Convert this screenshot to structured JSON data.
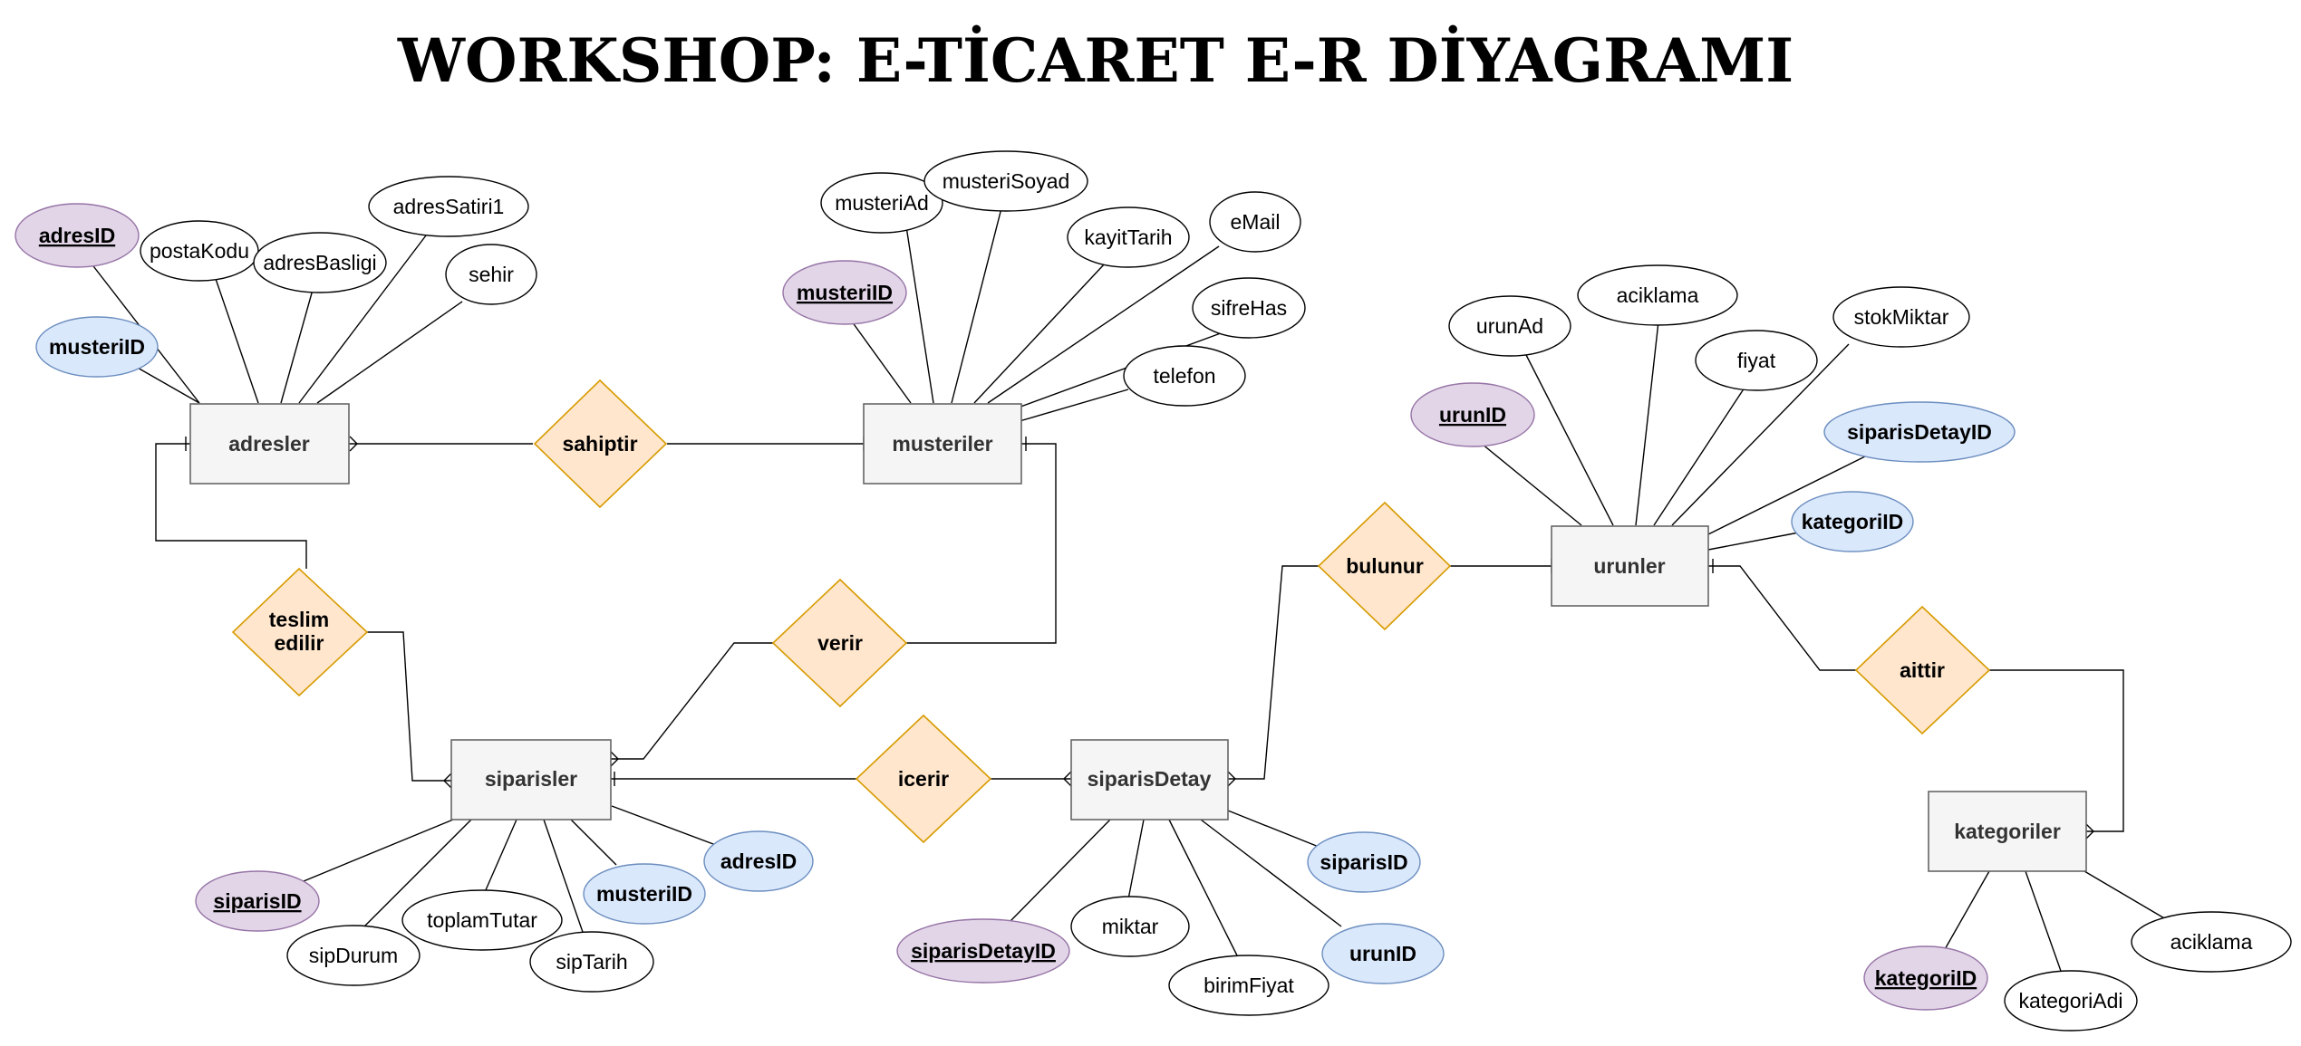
{
  "title": "WORKSHOP: E-TİCARET E-R DİYAGRAMI",
  "entities": {
    "adresler": "adresler",
    "musteriler": "musteriler",
    "siparisler": "siparisler",
    "siparisDetay": "siparisDetay",
    "urunler": "urunler",
    "kategoriler": "kategoriler"
  },
  "relationships": {
    "sahiptir": "sahiptir",
    "teslim_edilir": [
      "teslim",
      "edilir"
    ],
    "verir": "verir",
    "icerir": "icerir",
    "bulunur": "bulunur",
    "aittir": "aittir"
  },
  "attributes": {
    "adresler": {
      "adresID": "adresID",
      "musteriID": "musteriID",
      "postaKodu": "postaKodu",
      "adresBasligi": "adresBasligi",
      "adresSatiri1": "adresSatiri1",
      "sehir": "sehir"
    },
    "musteriler": {
      "musteriID": "musteriID",
      "musteriAd": "musteriAd",
      "musteriSoyad": "musteriSoyad",
      "kayitTarih": "kayitTarih",
      "eMail": "eMail",
      "sifreHas": "sifreHas",
      "telefon": "telefon"
    },
    "urunler": {
      "urunID": "urunID",
      "urunAd": "urunAd",
      "aciklama": "aciklama",
      "fiyat": "fiyat",
      "stokMiktar": "stokMiktar",
      "siparisDetayID": "siparisDetayID",
      "kategoriID": "kategoriID"
    },
    "siparisler": {
      "siparisID": "siparisID",
      "sipDurum": "sipDurum",
      "toplamTutar": "toplamTutar",
      "sipTarih": "sipTarih",
      "musteriID": "musteriID",
      "adresID": "adresID"
    },
    "siparisDetay": {
      "siparisDetayID": "siparisDetayID",
      "miktar": "miktar",
      "birimFiyat": "birimFiyat",
      "urunID": "urunID",
      "siparisID": "siparisID"
    },
    "kategoriler": {
      "kategoriID": "kategoriID",
      "kategoriAdi": "kategoriAdi",
      "aciklama": "aciklama"
    }
  },
  "colors": {
    "entity_fill": "#f5f5f5",
    "relationship_fill": "#ffe6cc",
    "relationship_stroke": "#d79b00",
    "primary_key_fill": "#e1d5e7",
    "foreign_key_fill": "#dae8fc"
  }
}
